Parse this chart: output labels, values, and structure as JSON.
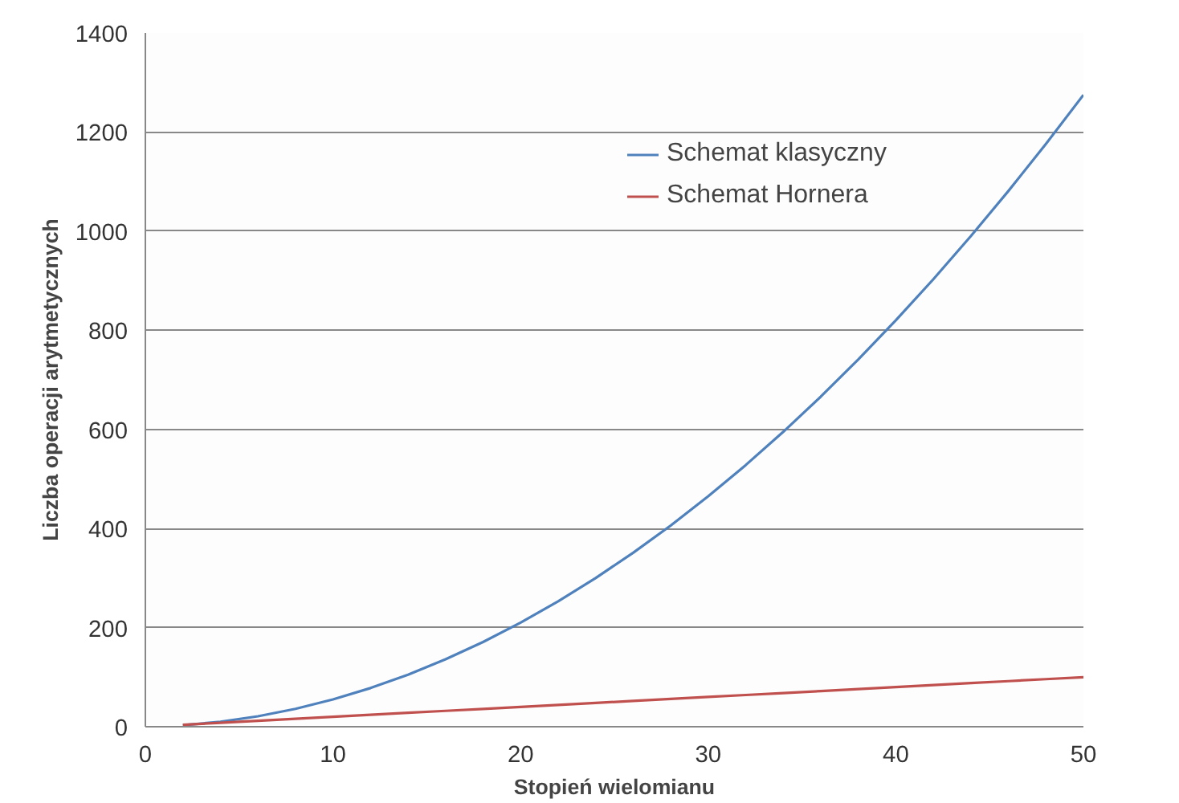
{
  "chart_data": {
    "type": "line",
    "xlabel": "Stopień wielomianu",
    "ylabel": "Liczba operacji arytmetycznych",
    "x": [
      2,
      4,
      6,
      8,
      10,
      12,
      14,
      16,
      18,
      20,
      22,
      24,
      26,
      28,
      30,
      32,
      34,
      36,
      38,
      40,
      42,
      44,
      46,
      48,
      50
    ],
    "series": [
      {
        "name": "Schemat klasyczny",
        "color": "#4f81bd",
        "values": [
          3,
          10,
          21,
          36,
          55,
          78,
          105,
          136,
          171,
          210,
          253,
          300,
          351,
          406,
          465,
          528,
          595,
          666,
          741,
          820,
          903,
          990,
          1081,
          1176,
          1275
        ]
      },
      {
        "name": "Schemat Hornera",
        "color": "#c0504d",
        "values": [
          4,
          8,
          12,
          16,
          20,
          24,
          28,
          32,
          36,
          40,
          44,
          48,
          52,
          56,
          60,
          64,
          68,
          72,
          76,
          80,
          84,
          88,
          92,
          96,
          100
        ]
      }
    ],
    "xlim": [
      0,
      50
    ],
    "xticks": [
      0,
      10,
      20,
      30,
      40,
      50
    ],
    "ylim": [
      0,
      1400
    ],
    "yticks": [
      0,
      200,
      400,
      600,
      800,
      1000,
      1200,
      1400
    ],
    "grid": "y",
    "legend": "top",
    "marker": "none",
    "line_style": "solid"
  }
}
